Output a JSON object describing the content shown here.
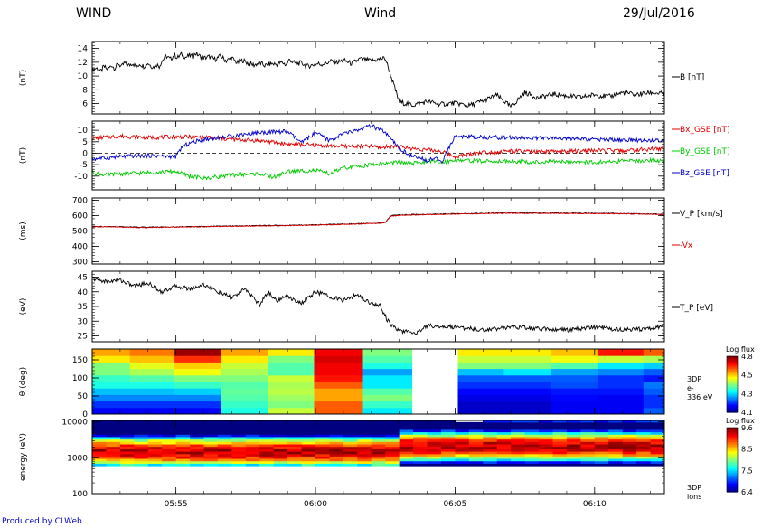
{
  "header": {
    "left": "WIND",
    "center": "Wind",
    "right": "29/Jul/2016"
  },
  "footer": "Produced by CLWeb",
  "x_ticks": [
    "05:55",
    "06:00",
    "06:05",
    "06:10"
  ],
  "chart_data": [
    {
      "type": "line",
      "ylabel": "(nT)",
      "yticks": [
        6,
        8,
        10,
        12,
        14
      ],
      "ylim": [
        4.5,
        15
      ],
      "series": [
        {
          "name": "B [nT]",
          "color": "#000000",
          "t": [
            0,
            0.15,
            0.3,
            0.42,
            0.55,
            0.7,
            0.8,
            0.95,
            1.05,
            1.15,
            1.3,
            1.45,
            1.6,
            1.7,
            1.85,
            2.0,
            2.1,
            2.2,
            2.3,
            2.4,
            2.5,
            2.65,
            2.8,
            2.95,
            3.05,
            3.2,
            3.35,
            3.5,
            3.6,
            3.7,
            3.85,
            4.0,
            4.2,
            4.4,
            4.6,
            4.8,
            5.0,
            5.2,
            5.4,
            5.6,
            5.8,
            6.0,
            6.2,
            6.4,
            6.6,
            6.8,
            6.95,
            7.05,
            7.1,
            7.15,
            7.3,
            7.5,
            7.7,
            7.9,
            8.1,
            8.2,
            8.4,
            8.6,
            8.8,
            9.0,
            9.3,
            9.6,
            10.0,
            10.5,
            11.0,
            11.5,
            12.0,
            12.5,
            13.0,
            13.5,
            14.0,
            14.5,
            15.0,
            15.5,
            16.0,
            16.5,
            17.0,
            17.5,
            18.0,
            18.5,
            19.0,
            19.5,
            20.0,
            20.5
          ],
          "v": [
            10.8,
            11.2,
            10.6,
            11.4,
            10.9,
            11.6,
            11.1,
            11.8,
            11.3,
            11.9,
            11.5,
            11.9,
            11.2,
            11.8,
            11.4,
            11.9,
            11.5,
            11.3,
            11.7,
            11.4,
            12.2,
            12.9,
            12.4,
            13.1,
            12.6,
            13.2,
            12.7,
            13.0,
            12.8,
            13.3,
            12.9,
            12.6,
            12.8,
            12.4,
            12.9,
            12.2,
            12.6,
            11.9,
            12.3,
            11.8,
            11.6,
            11.9,
            11.5,
            11.8,
            11.7,
            12.0,
            11.6,
            12.3,
            12.4,
            12.1,
            11.8,
            11.9,
            11.4,
            11.6,
            11.8,
            11.7,
            11.9,
            12.2,
            12.0,
            12.3,
            11.8,
            12.5,
            12.2,
            12.6,
            6.2,
            5.8,
            6.3,
            5.9,
            6.1,
            5.7,
            6.4,
            7.2,
            5.5,
            7.6,
            6.8,
            7.4,
            7.1,
            6.9,
            7.3,
            7.0,
            7.6,
            7.3,
            7.6,
            7.4
          ]
        }
      ]
    },
    {
      "type": "line",
      "ylabel": "(nT)",
      "yticks": [
        10,
        5,
        0,
        -5,
        -10
      ],
      "ylim": [
        -16,
        14
      ],
      "zero_line": true,
      "series": [
        {
          "name": "Bx_GSE [nT]",
          "color": "#e00000",
          "t": [
            0,
            1,
            2,
            3,
            4,
            5,
            6,
            7,
            8,
            9,
            10,
            10.3,
            10.8,
            11.5,
            12,
            12.5,
            13,
            14,
            14.5,
            15,
            16,
            17,
            18,
            19,
            20,
            20.5
          ],
          "v": [
            6.5,
            7.5,
            6.8,
            7.2,
            7.0,
            6.0,
            5.5,
            4.0,
            3.5,
            3.0,
            3.0,
            2.5,
            3.0,
            2.0,
            1.5,
            0.8,
            -1.5,
            0.5,
            0.5,
            1.0,
            0.5,
            0.8,
            1.2,
            1.0,
            1.8,
            2.0
          ]
        },
        {
          "name": "By_GSE [nT]",
          "color": "#00cc00",
          "t": [
            0,
            0.5,
            1,
            2,
            3,
            3.5,
            4,
            5,
            6,
            6.5,
            7,
            8,
            8.5,
            9,
            10,
            10.5,
            11,
            11.5,
            12,
            12.5,
            13,
            14,
            15,
            16,
            17,
            18,
            19,
            20,
            20.5
          ],
          "v": [
            -8.5,
            -9.5,
            -9.0,
            -8.5,
            -8.0,
            -10.0,
            -11.0,
            -9.5,
            -9.0,
            -10.5,
            -8.0,
            -7.5,
            -9.0,
            -6.5,
            -5.0,
            -4.5,
            -4.0,
            -4.5,
            -3.5,
            -4.0,
            -3.0,
            -3.5,
            -3.5,
            -4.0,
            -3.5,
            -4.0,
            -3.5,
            -3.0,
            -3.5
          ]
        },
        {
          "name": "Bz_GSE [nT]",
          "color": "#0000cc",
          "t": [
            0,
            0.5,
            1,
            2,
            3,
            3.2,
            3.5,
            4,
            5,
            5.5,
            6,
            7,
            7.5,
            8,
            8.5,
            9,
            9.5,
            10,
            10.5,
            11,
            11.5,
            12,
            12.3,
            12.5,
            13,
            14,
            15,
            16,
            17,
            18,
            19,
            20,
            20.5
          ],
          "v": [
            -2.5,
            -2.0,
            -1.5,
            -1.0,
            -1.5,
            2.5,
            4.5,
            6.0,
            7.5,
            8.5,
            9.0,
            9.5,
            4.5,
            9.0,
            5.5,
            8.5,
            10.0,
            12.0,
            9.0,
            2.0,
            -1.5,
            -3.0,
            -2.0,
            -4.5,
            7.5,
            7.0,
            6.8,
            6.5,
            6.5,
            6.0,
            5.8,
            5.5,
            5.8
          ]
        }
      ]
    },
    {
      "type": "line",
      "ylabel": "(ms)",
      "yticks": [
        300,
        400,
        500,
        600,
        700
      ],
      "ylim": [
        285,
        715
      ],
      "series": [
        {
          "name": "V_P [km/s]",
          "color": "#000000",
          "t": [
            0,
            1,
            2,
            3,
            4,
            5,
            6,
            7,
            8,
            9,
            10,
            10.5,
            10.7,
            11,
            12,
            13,
            14,
            15,
            16,
            17,
            18,
            19,
            20,
            20.5
          ],
          "v": [
            530,
            528,
            525,
            527,
            530,
            532,
            535,
            537,
            540,
            545,
            550,
            555,
            600,
            605,
            608,
            612,
            615,
            618,
            617,
            616,
            615,
            614,
            610,
            608
          ]
        },
        {
          "name": "-Vx",
          "color": "#e00000",
          "t": [
            0,
            1,
            2,
            3,
            4,
            5,
            6,
            7,
            8,
            9,
            10,
            10.5,
            10.7,
            11,
            12,
            13,
            14,
            15,
            16,
            17,
            18,
            19,
            20,
            20.5
          ],
          "v": [
            528,
            526,
            522,
            525,
            528,
            530,
            533,
            535,
            538,
            543,
            548,
            553,
            597,
            602,
            606,
            610,
            613,
            616,
            615,
            614,
            613,
            612,
            608,
            606
          ]
        }
      ]
    },
    {
      "type": "line",
      "ylabel": "(eV)",
      "yticks": [
        25,
        30,
        35,
        40,
        45
      ],
      "ylim": [
        23,
        47
      ],
      "series": [
        {
          "name": "T_P [eV]",
          "color": "#000000",
          "t": [
            0,
            0.5,
            1,
            1.5,
            2,
            2.5,
            3,
            3.5,
            4,
            4.5,
            5,
            5.5,
            6,
            6.3,
            6.6,
            7,
            7.5,
            8,
            8.5,
            9,
            9.5,
            10,
            10.3,
            10.6,
            10.9,
            11.2,
            11.6,
            12,
            13,
            14,
            15,
            16,
            17,
            18,
            19,
            20,
            20.5
          ],
          "v": [
            44.5,
            43.5,
            44.0,
            42.0,
            43.0,
            40.0,
            42.0,
            41.0,
            42.5,
            40.0,
            38.0,
            41.0,
            35.5,
            40.0,
            37.0,
            38.5,
            36.0,
            40.0,
            38.5,
            37.0,
            39.0,
            36.0,
            35.5,
            30.0,
            27.0,
            26.5,
            26.0,
            28.5,
            28.0,
            27.0,
            28.0,
            27.5,
            27.0,
            28.0,
            27.0,
            27.5,
            28.5
          ]
        }
      ]
    },
    {
      "type": "heatmap",
      "ylabel": "θ (deg)",
      "yticks": [
        0,
        50,
        100,
        150
      ],
      "ylim": [
        0,
        180
      ],
      "label_right": [
        "3DP",
        "e-",
        "336 eV"
      ],
      "colorbar": {
        "title": "Log flux",
        "ticks": [
          "4.8",
          "4.5",
          "4.3",
          "4.1"
        ]
      },
      "zmin": 4.1,
      "zmax": 4.8,
      "x_edges": [
        0,
        1.35,
        2.95,
        4.6,
        6.3,
        7.95,
        9.7,
        11.45,
        13.1,
        14.75,
        16.45,
        18.1,
        19.75,
        20.5
      ],
      "y_edges": [
        0,
        18,
        36,
        54,
        72,
        90,
        108,
        126,
        144,
        162,
        180
      ],
      "z": [
        [
          4.18,
          4.18,
          4.18,
          4.38,
          4.5,
          4.65,
          4.35,
          null,
          4.15,
          4.15,
          4.18,
          4.18,
          4.25
        ],
        [
          4.22,
          4.22,
          4.22,
          4.4,
          4.45,
          4.65,
          4.4,
          null,
          4.15,
          4.15,
          4.18,
          4.18,
          4.22
        ],
        [
          4.28,
          4.28,
          4.28,
          4.42,
          4.47,
          4.6,
          4.45,
          null,
          4.17,
          4.17,
          4.19,
          4.18,
          4.22
        ],
        [
          4.32,
          4.32,
          4.33,
          4.43,
          4.49,
          4.6,
          4.42,
          null,
          4.19,
          4.19,
          4.2,
          4.2,
          4.25
        ],
        [
          4.38,
          4.38,
          4.4,
          4.42,
          4.48,
          4.65,
          4.35,
          null,
          4.22,
          4.22,
          4.24,
          4.22,
          4.27
        ],
        [
          4.4,
          4.42,
          4.45,
          4.45,
          4.5,
          4.7,
          4.35,
          null,
          4.25,
          4.25,
          4.25,
          4.22,
          4.2
        ],
        [
          4.45,
          4.48,
          4.53,
          4.48,
          4.42,
          4.72,
          4.3,
          null,
          4.32,
          4.35,
          4.3,
          4.28,
          4.25
        ],
        [
          4.45,
          4.52,
          4.57,
          4.5,
          4.42,
          4.72,
          4.38,
          null,
          4.45,
          4.45,
          4.42,
          4.35,
          4.33
        ],
        [
          4.55,
          4.58,
          4.68,
          4.55,
          4.45,
          4.74,
          4.42,
          null,
          4.5,
          4.5,
          4.53,
          4.5,
          4.48
        ],
        [
          4.6,
          4.63,
          4.78,
          4.6,
          4.55,
          4.72,
          4.45,
          null,
          4.55,
          4.55,
          4.58,
          4.7,
          4.65
        ]
      ]
    },
    {
      "type": "heatmap",
      "ylabel": "energy (eV)",
      "ylog": true,
      "yticks": [
        100,
        1000,
        10000
      ],
      "ylim": [
        100,
        11000
      ],
      "label_right": [
        "3DP",
        "ions"
      ],
      "colorbar": {
        "title": "Log flux",
        "ticks": [
          "9.6",
          "8.5",
          "7.5",
          "6.4"
        ]
      },
      "zmin": 6.4,
      "zmax": 9.6,
      "spectrum": {
        "e_edges": [
          600,
          700,
          820,
          960,
          1120,
          1300,
          1520,
          1780,
          2080,
          2430,
          2840,
          3320,
          3880,
          4530,
          5300,
          6190,
          7240,
          8460,
          9890,
          11000
        ],
        "pre_peak": 1500,
        "post_peak": 2100,
        "switch_t": 10.8,
        "gap_t": [
          13.0,
          14.2
        ],
        "edges_t_step": 0.5
      }
    }
  ]
}
